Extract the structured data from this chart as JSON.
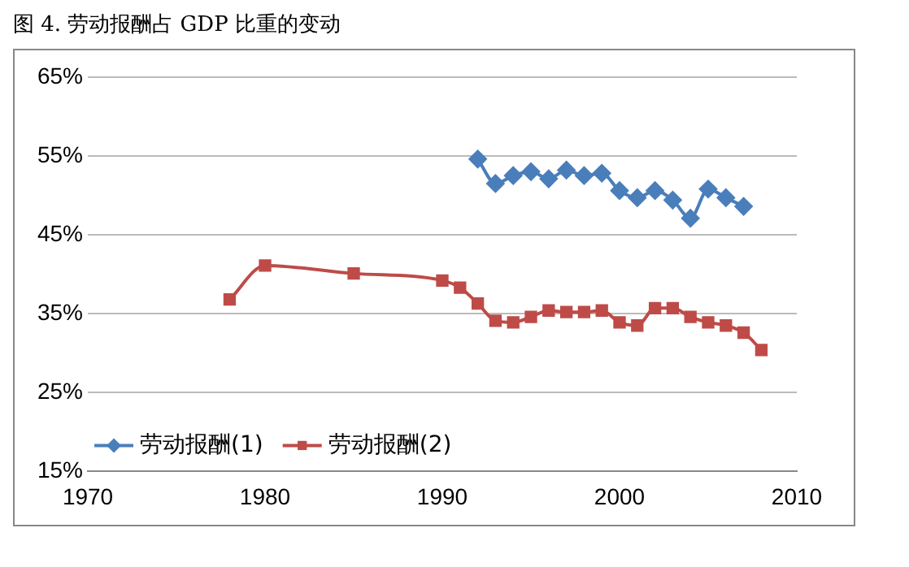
{
  "chart_data": {
    "type": "line",
    "title": "图 4. 劳动报酬占 GDP 比重的变动",
    "series": [
      {
        "name": "劳动报酬(1)",
        "color": "#4a7ebb",
        "marker": "diamond",
        "x": [
          1992,
          1993,
          1994,
          1995,
          1996,
          1997,
          1998,
          1999,
          2000,
          2001,
          2002,
          2003,
          2004,
          2005,
          2006,
          2007
        ],
        "values": [
          54.6,
          51.5,
          52.5,
          53,
          52.1,
          53.2,
          52.5,
          52.8,
          50.6,
          49.7,
          50.6,
          49.4,
          47.1,
          50.8,
          49.7,
          48.6
        ]
      },
      {
        "name": "劳动报酬(2)",
        "color": "#be4b48",
        "marker": "square",
        "x": [
          1978,
          1980,
          1985,
          1990,
          1991,
          1992,
          1993,
          1994,
          1995,
          1996,
          1997,
          1998,
          1999,
          2000,
          2001,
          2002,
          2003,
          2004,
          2005,
          2006,
          2007,
          2008
        ],
        "values": [
          36.8,
          41.1,
          40.1,
          39.2,
          38.3,
          36.3,
          34.1,
          33.9,
          34.6,
          35.4,
          35.2,
          35.2,
          35.4,
          33.9,
          33.5,
          35.7,
          35.7,
          34.6,
          33.9,
          33.5,
          32.6,
          30.4
        ]
      }
    ],
    "xlim": [
      1970,
      2010
    ],
    "xticks": [
      1970,
      1980,
      1990,
      2000,
      2010
    ],
    "ylim": [
      15,
      65
    ],
    "yticks": [
      {
        "value": 15,
        "label": "15%"
      },
      {
        "value": 25,
        "label": "25%"
      },
      {
        "value": 35,
        "label": "35%"
      },
      {
        "value": 45,
        "label": "45%"
      },
      {
        "value": 55,
        "label": "55%"
      },
      {
        "value": 65,
        "label": "65%"
      }
    ],
    "grid": "y",
    "legend": "bottom left"
  }
}
